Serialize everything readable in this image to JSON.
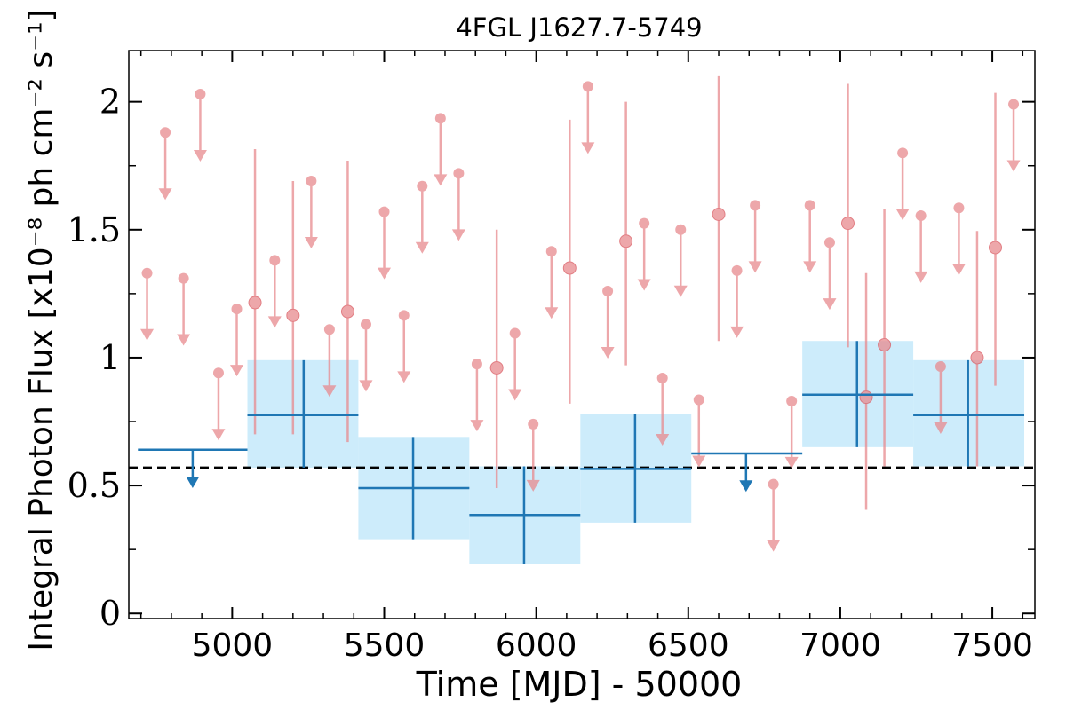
{
  "chart_data": {
    "type": "scatter",
    "title": "4FGL J1627.7-5749",
    "xlabel": "Time [MJD] - 50000",
    "ylabel": "Integral Photon Flux [x10⁻⁸ ph cm⁻² s⁻¹]",
    "xlim": [
      4660,
      7640
    ],
    "ylim": [
      -0.02,
      2.2
    ],
    "x_ticks": [
      5000,
      5500,
      6000,
      6500,
      7000,
      7500
    ],
    "x_tick_labels": [
      "5000",
      "5500",
      "6000",
      "6500",
      "7000",
      "7500"
    ],
    "y_ticks": [
      0,
      0.5,
      1,
      1.5,
      2
    ],
    "y_tick_labels": [
      "0",
      "0.5",
      "1",
      "1.5",
      "2"
    ],
    "grid": false,
    "colors": {
      "fine_bins": "#e88a8e",
      "coarse_bins": "#1f77b4",
      "coarse_box": "#cdecfb",
      "mean_line": "#000000"
    },
    "mean_flux": 0.57,
    "coarse_bins": [
      {
        "x": 4870,
        "xlo": 4690,
        "xhi": 5050,
        "y": 0.64,
        "upper_limit": true
      },
      {
        "x": 5235,
        "xlo": 5050,
        "xhi": 5415,
        "y": 0.775,
        "ylo": 0.57,
        "yhi": 0.99,
        "upper_limit": false
      },
      {
        "x": 5595,
        "xlo": 5415,
        "xhi": 5780,
        "y": 0.49,
        "ylo": 0.29,
        "yhi": 0.69,
        "upper_limit": false
      },
      {
        "x": 5960,
        "xlo": 5780,
        "xhi": 6145,
        "y": 0.385,
        "ylo": 0.195,
        "yhi": 0.575,
        "upper_limit": false
      },
      {
        "x": 6325,
        "xlo": 6145,
        "xhi": 6510,
        "y": 0.565,
        "ylo": 0.355,
        "yhi": 0.78,
        "upper_limit": false
      },
      {
        "x": 6690,
        "xlo": 6510,
        "xhi": 6875,
        "y": 0.625,
        "upper_limit": true
      },
      {
        "x": 7055,
        "xlo": 6875,
        "xhi": 7240,
        "y": 0.855,
        "ylo": 0.65,
        "yhi": 1.065,
        "upper_limit": false
      },
      {
        "x": 7420,
        "xlo": 7240,
        "xhi": 7605,
        "y": 0.775,
        "ylo": 0.575,
        "yhi": 0.99,
        "upper_limit": false
      }
    ],
    "fine_bins": [
      {
        "x": 4720,
        "y": 1.33,
        "upper_limit": true
      },
      {
        "x": 4780,
        "y": 1.88,
        "upper_limit": true
      },
      {
        "x": 4840,
        "y": 1.31,
        "upper_limit": true
      },
      {
        "x": 4895,
        "y": 2.03,
        "upper_limit": true
      },
      {
        "x": 4955,
        "y": 0.94,
        "upper_limit": true
      },
      {
        "x": 5015,
        "y": 1.19,
        "upper_limit": true
      },
      {
        "x": 5075,
        "y": 1.215,
        "ylo": 0.7,
        "yhi": 1.815,
        "upper_limit": false
      },
      {
        "x": 5140,
        "y": 1.38,
        "upper_limit": true
      },
      {
        "x": 5200,
        "y": 1.165,
        "ylo": 0.7,
        "yhi": 1.69,
        "upper_limit": false
      },
      {
        "x": 5260,
        "y": 1.69,
        "upper_limit": true
      },
      {
        "x": 5320,
        "y": 1.11,
        "upper_limit": true
      },
      {
        "x": 5380,
        "y": 1.18,
        "ylo": 0.67,
        "yhi": 1.77,
        "upper_limit": false
      },
      {
        "x": 5440,
        "y": 1.13,
        "upper_limit": true
      },
      {
        "x": 5500,
        "y": 1.57,
        "upper_limit": true
      },
      {
        "x": 5565,
        "y": 1.165,
        "upper_limit": true
      },
      {
        "x": 5625,
        "y": 1.67,
        "upper_limit": true
      },
      {
        "x": 5685,
        "y": 1.935,
        "upper_limit": true
      },
      {
        "x": 5745,
        "y": 1.72,
        "upper_limit": true
      },
      {
        "x": 5805,
        "y": 0.975,
        "upper_limit": true
      },
      {
        "x": 5870,
        "y": 0.96,
        "ylo": 0.49,
        "yhi": 1.5,
        "upper_limit": false
      },
      {
        "x": 5930,
        "y": 1.095,
        "upper_limit": true
      },
      {
        "x": 5990,
        "y": 0.74,
        "upper_limit": true
      },
      {
        "x": 6050,
        "y": 1.415,
        "upper_limit": true
      },
      {
        "x": 6110,
        "y": 1.35,
        "ylo": 0.82,
        "yhi": 1.93,
        "upper_limit": false
      },
      {
        "x": 6170,
        "y": 2.06,
        "upper_limit": true
      },
      {
        "x": 6235,
        "y": 1.26,
        "upper_limit": true
      },
      {
        "x": 6295,
        "y": 1.455,
        "ylo": 0.97,
        "yhi": 2.0,
        "upper_limit": false
      },
      {
        "x": 6355,
        "y": 1.525,
        "upper_limit": true
      },
      {
        "x": 6415,
        "y": 0.92,
        "upper_limit": true
      },
      {
        "x": 6475,
        "y": 1.5,
        "upper_limit": true
      },
      {
        "x": 6535,
        "y": 0.835,
        "upper_limit": true
      },
      {
        "x": 6600,
        "y": 1.56,
        "ylo": 1.065,
        "yhi": 2.1,
        "upper_limit": false
      },
      {
        "x": 6660,
        "y": 1.34,
        "upper_limit": true
      },
      {
        "x": 6720,
        "y": 1.595,
        "upper_limit": true
      },
      {
        "x": 6780,
        "y": 0.505,
        "upper_limit": true
      },
      {
        "x": 6840,
        "y": 0.83,
        "upper_limit": true
      },
      {
        "x": 6900,
        "y": 1.595,
        "upper_limit": true
      },
      {
        "x": 6965,
        "y": 1.45,
        "upper_limit": true
      },
      {
        "x": 7025,
        "y": 1.525,
        "ylo": 1.04,
        "yhi": 2.07,
        "upper_limit": false
      },
      {
        "x": 7085,
        "y": 0.845,
        "ylo": 0.405,
        "yhi": 1.33,
        "upper_limit": false
      },
      {
        "x": 7145,
        "y": 1.05,
        "ylo": 0.575,
        "yhi": 1.58,
        "upper_limit": false
      },
      {
        "x": 7205,
        "y": 1.8,
        "upper_limit": true
      },
      {
        "x": 7265,
        "y": 1.555,
        "upper_limit": true
      },
      {
        "x": 7330,
        "y": 0.965,
        "upper_limit": true
      },
      {
        "x": 7390,
        "y": 1.585,
        "upper_limit": true
      },
      {
        "x": 7450,
        "y": 1.0,
        "ylo": 0.575,
        "yhi": 1.495,
        "upper_limit": false
      },
      {
        "x": 7510,
        "y": 1.43,
        "ylo": 0.89,
        "yhi": 2.035,
        "upper_limit": false
      },
      {
        "x": 7570,
        "y": 1.99,
        "upper_limit": true
      }
    ]
  }
}
